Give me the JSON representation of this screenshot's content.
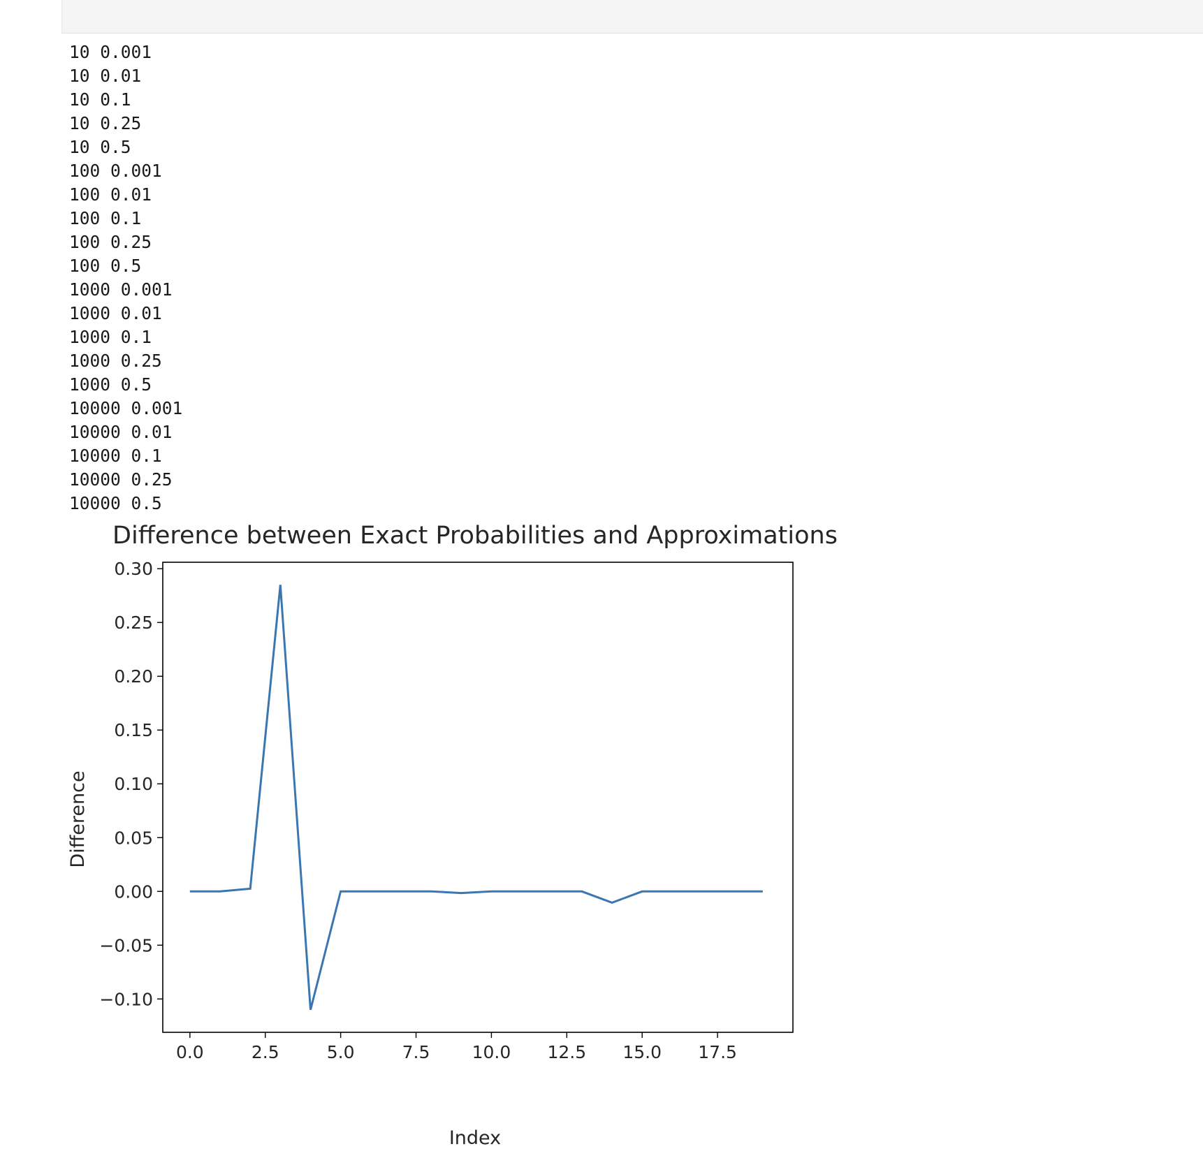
{
  "output_lines": [
    "10 0.001",
    "10 0.01",
    "10 0.1",
    "10 0.25",
    "10 0.5",
    "100 0.001",
    "100 0.01",
    "100 0.1",
    "100 0.25",
    "100 0.5",
    "1000 0.001",
    "1000 0.01",
    "1000 0.1",
    "1000 0.25",
    "1000 0.5",
    "10000 0.001",
    "10000 0.01",
    "10000 0.1",
    "10000 0.25",
    "10000 0.5"
  ],
  "chart_data": {
    "type": "line",
    "title": "Difference between Exact Probabilities and Approximations",
    "xlabel": "Index",
    "ylabel": "Difference",
    "x": [
      0,
      1,
      2,
      3,
      4,
      5,
      6,
      7,
      8,
      9,
      10,
      11,
      12,
      13,
      14,
      15,
      16,
      17,
      18,
      19
    ],
    "series": [
      {
        "values": [
          0.0,
          0.0,
          0.0025,
          0.285,
          -0.11,
          0.0,
          0.0,
          0.0,
          0.0,
          -0.0015,
          0.0,
          0.0,
          0.0,
          0.0,
          -0.0105,
          0.0,
          0.0,
          0.0,
          0.0,
          0.0
        ],
        "color": "#3a77b0"
      }
    ],
    "xlim": [
      -0.9,
      20.0
    ],
    "ylim": [
      -0.131,
      0.306
    ],
    "xticks": [
      0.0,
      2.5,
      5.0,
      7.5,
      10.0,
      12.5,
      15.0,
      17.5
    ],
    "xtick_labels": [
      "0.0",
      "2.5",
      "5.0",
      "7.5",
      "10.0",
      "12.5",
      "15.0",
      "17.5"
    ],
    "yticks": [
      -0.1,
      -0.05,
      0.0,
      0.05,
      0.1,
      0.15,
      0.2,
      0.25,
      0.3
    ],
    "ytick_labels": [
      "−0.10",
      "−0.05",
      "0.00",
      "0.05",
      "0.10",
      "0.15",
      "0.20",
      "0.25",
      "0.30"
    ],
    "grid": false,
    "legend": "none"
  }
}
